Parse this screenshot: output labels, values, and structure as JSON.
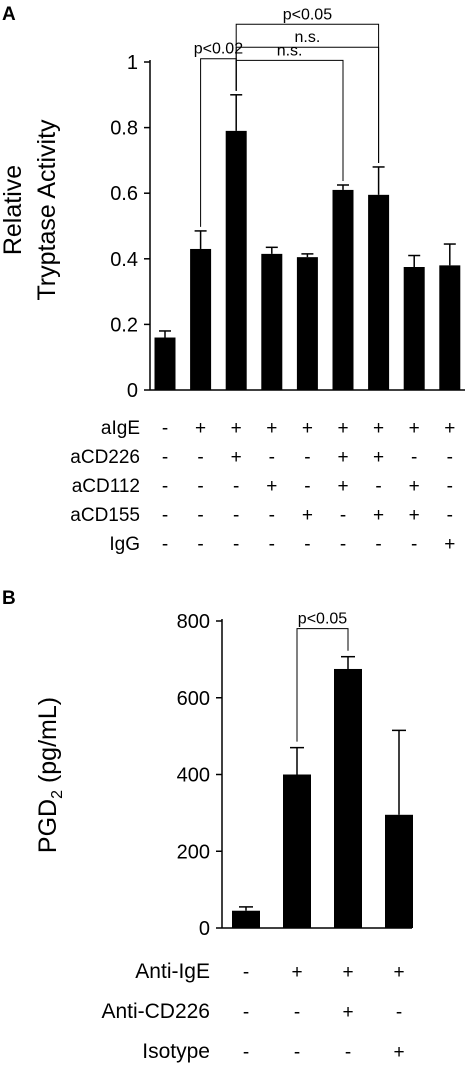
{
  "chart_data": [
    {
      "panel": "A",
      "type": "bar",
      "ylabel_lines": [
        "Relative",
        "Tryptase Activity"
      ],
      "ylim": [
        0,
        1
      ],
      "yticks": [
        "0",
        "0.2",
        "0.4",
        "0.6",
        "0.8",
        "1"
      ],
      "ytick_values": [
        0,
        0.2,
        0.4,
        0.6,
        0.8,
        1
      ],
      "values": [
        0.16,
        0.43,
        0.79,
        0.415,
        0.405,
        0.61,
        0.595,
        0.375,
        0.38
      ],
      "errors": [
        0.02,
        0.055,
        0.11,
        0.02,
        0.01,
        0.015,
        0.085,
        0.035,
        0.065
      ],
      "conditions": [
        {
          "label": "aIgE",
          "signs": [
            "-",
            "+",
            "+",
            "+",
            "+",
            "+",
            "+",
            "+",
            "+"
          ]
        },
        {
          "label": "aCD226",
          "signs": [
            "-",
            "-",
            "+",
            "-",
            "-",
            "+",
            "+",
            "-",
            "-"
          ]
        },
        {
          "label": "aCD112",
          "signs": [
            "-",
            "-",
            "-",
            "+",
            "-",
            "+",
            "-",
            "+",
            "-"
          ]
        },
        {
          "label": "aCD155",
          "signs": [
            "-",
            "-",
            "-",
            "-",
            "+",
            "-",
            "+",
            "+",
            "-"
          ]
        },
        {
          "label": "IgG",
          "signs": [
            "-",
            "-",
            "-",
            "-",
            "-",
            "-",
            "-",
            "-",
            "+"
          ]
        }
      ],
      "annotations": [
        {
          "text": "p<0.05",
          "from_bar": 2,
          "to_bar": 6,
          "level": 1.115
        },
        {
          "text": "p<0.02",
          "from_bar": 1,
          "to_bar": 2,
          "level": 1.01
        },
        {
          "text": "n.s.",
          "from_bar": 2,
          "to_bar": 6,
          "level": 1.045
        },
        {
          "text": "n.s.",
          "from_bar": 2,
          "to_bar": 5,
          "level": 1.005
        }
      ],
      "grid": false,
      "legend": "none"
    },
    {
      "panel": "B",
      "type": "bar",
      "ylabel": "PGD",
      "ylabel_sub": "2",
      "ylabel_unit": " (pg/mL)",
      "ylim": [
        0,
        800
      ],
      "yticks": [
        "0",
        "200",
        "400",
        "600",
        "800"
      ],
      "ytick_values": [
        0,
        200,
        400,
        600,
        800
      ],
      "values": [
        45,
        400,
        675,
        295
      ],
      "errors": [
        10,
        70,
        32,
        220
      ],
      "conditions": [
        {
          "label": "Anti-IgE",
          "signs": [
            "-",
            "+",
            "+",
            "+"
          ]
        },
        {
          "label": "Anti-CD226",
          "signs": [
            "-",
            "-",
            "+",
            "-"
          ]
        },
        {
          "label": "Isotype",
          "signs": [
            "-",
            "-",
            "-",
            "+"
          ]
        }
      ],
      "annotations": [
        {
          "text": "p<0.05",
          "from_bar": 1,
          "to_bar": 2,
          "level": 780
        }
      ],
      "grid": false,
      "legend": "none"
    }
  ]
}
